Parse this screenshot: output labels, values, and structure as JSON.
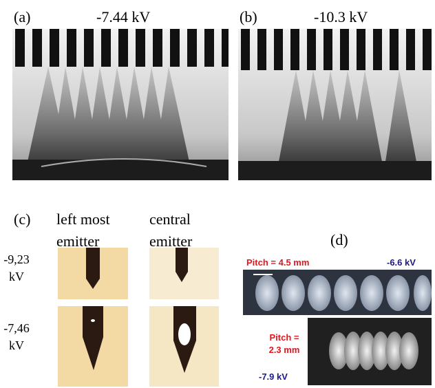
{
  "panels": {
    "a": {
      "label": "(a)",
      "voltage": "-7.44 kV"
    },
    "b": {
      "label": "(b)",
      "voltage": "-10.3 kV"
    },
    "c": {
      "label": "(c)",
      "columns": [
        "left most emitter",
        "central emitter"
      ],
      "rows": [
        "-9,23 kV",
        "-7,46 kV"
      ]
    },
    "d": {
      "label": "(d)",
      "top": {
        "pitch": "Pitch = 4.5 mm",
        "voltage": "-6.6 kV"
      },
      "bottom": {
        "pitch": "Pitch = 2.3 mm",
        "voltage": "-7.9 kV"
      }
    }
  }
}
